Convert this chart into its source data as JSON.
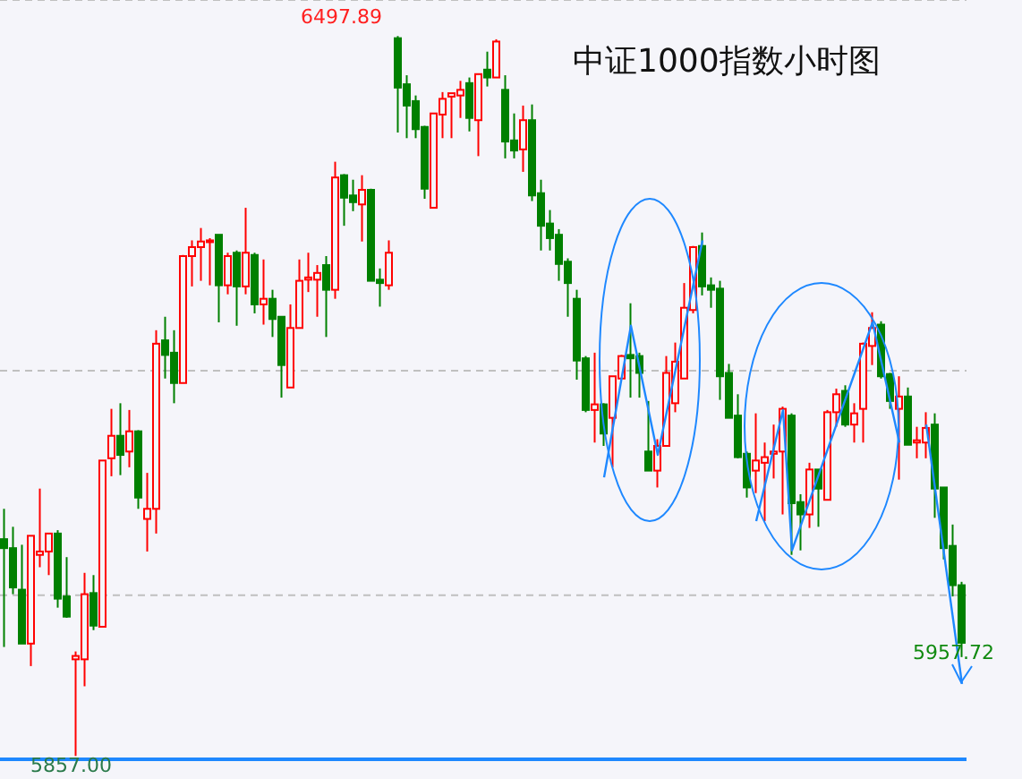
{
  "chart_data": {
    "type": "candlestick",
    "title": "中证1000指数小时图",
    "categories": [
      null,
      null,
      null,
      null,
      null,
      null,
      null,
      null,
      null,
      null,
      null,
      null,
      null,
      null,
      null,
      null,
      null,
      null,
      null,
      null,
      null,
      null,
      null,
      null,
      null,
      null,
      null,
      null,
      null,
      null,
      null,
      null,
      null,
      null,
      null,
      null,
      null,
      null,
      null,
      null,
      null,
      null,
      null,
      null,
      null,
      null,
      null,
      null,
      null,
      null,
      null,
      null,
      null,
      null,
      null,
      null,
      null,
      null,
      null,
      null,
      null,
      null,
      null,
      null,
      null,
      null,
      null,
      null,
      null,
      null,
      null,
      null,
      null,
      null,
      null,
      null,
      null,
      null,
      null,
      null,
      null,
      null,
      null,
      null,
      null,
      null,
      null,
      null,
      null,
      null,
      null,
      null,
      null,
      null,
      null,
      null,
      null,
      null,
      null,
      null,
      null,
      null,
      null,
      null,
      null,
      null,
      null,
      null
    ],
    "ohlc": [
      [
        6050,
        6077,
        5954,
        6042
      ],
      [
        6042,
        6061,
        6001,
        6007
      ],
      [
        6005,
        6045,
        5957,
        5957
      ],
      [
        5957,
        6053,
        5937,
        6053
      ],
      [
        6036,
        6095,
        6025,
        6039
      ],
      [
        6039,
        6055,
        6018,
        6055
      ],
      [
        6055,
        6058,
        5989,
        5997
      ],
      [
        5999,
        6034,
        5980,
        5981
      ],
      [
        5943,
        5950,
        5857.0,
        5946
      ],
      [
        5943,
        6020,
        5919,
        6001
      ],
      [
        6002,
        6018,
        5969,
        5973
      ],
      [
        5972,
        6120,
        5972,
        6120
      ],
      [
        6122,
        6166,
        6106,
        6142
      ],
      [
        6142,
        6171,
        6107,
        6125
      ],
      [
        6128,
        6165,
        6114,
        6146
      ],
      [
        6146,
        6147,
        6077,
        6087
      ],
      [
        6068,
        6109,
        6039,
        6077
      ],
      [
        6077,
        6236,
        6055,
        6224
      ],
      [
        6227,
        6248,
        6193,
        6214
      ],
      [
        6216,
        6236,
        6171,
        6189
      ],
      [
        6189,
        6303,
        6189,
        6302
      ],
      [
        6302,
        6316,
        6275,
        6310
      ],
      [
        6310,
        6327,
        6280,
        6315
      ],
      [
        6315,
        6318,
        6276,
        6316
      ],
      [
        6321,
        6321,
        6243,
        6276
      ],
      [
        6276,
        6305,
        6268,
        6302
      ],
      [
        6305,
        6307,
        6240,
        6275
      ],
      [
        6275,
        6345,
        6268,
        6305
      ],
      [
        6303,
        6305,
        6251,
        6259
      ],
      [
        6259,
        6299,
        6241,
        6264
      ],
      [
        6264,
        6272,
        6230,
        6246
      ],
      [
        6248,
        6248,
        6176,
        6205
      ],
      [
        6185,
        6259,
        6185,
        6238
      ],
      [
        6238,
        6299,
        6238,
        6280
      ],
      [
        6281,
        6305,
        6270,
        6283
      ],
      [
        6281,
        6294,
        6248,
        6287
      ],
      [
        6294,
        6302,
        6230,
        6272
      ],
      [
        6272,
        6386,
        6264,
        6372
      ],
      [
        6374,
        6375,
        6329,
        6354
      ],
      [
        6356,
        6370,
        6342,
        6350
      ],
      [
        6348,
        6374,
        6315,
        6361
      ],
      [
        6361,
        6362,
        6280,
        6280
      ],
      [
        6281,
        6291,
        6257,
        6278
      ],
      [
        6276,
        6316,
        6272,
        6305
      ],
      [
        6496,
        6497.89,
        6412,
        6452
      ],
      [
        6455,
        6463,
        6407,
        6436
      ],
      [
        6440,
        6445,
        6407,
        6415
      ],
      [
        6417,
        6418,
        6353,
        6362
      ],
      [
        6345,
        6429,
        6345,
        6429
      ],
      [
        6428,
        6448,
        6407,
        6442
      ],
      [
        6444,
        6447,
        6407,
        6447
      ],
      [
        6445,
        6458,
        6425,
        6450
      ],
      [
        6456,
        6461,
        6413,
        6425
      ],
      [
        6423,
        6464,
        6391,
        6464
      ],
      [
        6468,
        6484,
        6453,
        6461
      ],
      [
        6461,
        6495,
        6461,
        6493
      ],
      [
        6450,
        6463,
        6389,
        6404
      ],
      [
        6405,
        6429,
        6389,
        6396
      ],
      [
        6397,
        6436,
        6377,
        6423
      ],
      [
        6423,
        6437,
        6351,
        6356
      ],
      [
        6358,
        6370,
        6307,
        6329
      ],
      [
        6331,
        6343,
        6307,
        6318
      ],
      [
        6321,
        6326,
        6280,
        6295
      ],
      [
        6297,
        6300,
        6248,
        6278
      ],
      [
        6264,
        6272,
        6192,
        6209
      ],
      [
        6211,
        6213,
        6163,
        6165
      ],
      [
        6165,
        6216,
        6136,
        6170
      ],
      [
        6170,
        6171,
        6133,
        6144
      ],
      [
        6158,
        6195,
        6114,
        6195
      ],
      [
        6193,
        6214,
        6193,
        6213
      ],
      [
        6214,
        6260,
        6176,
        6211
      ],
      [
        6213,
        6216,
        6176,
        6198
      ],
      [
        6128,
        6173,
        6111,
        6111
      ],
      [
        6111,
        6139,
        6096,
        6133
      ],
      [
        6133,
        6213,
        6133,
        6198
      ],
      [
        6171,
        6225,
        6163,
        6208
      ],
      [
        6193,
        6278,
        6193,
        6256
      ],
      [
        6254,
        6311,
        6251,
        6310
      ],
      [
        6311,
        6323,
        6267,
        6275
      ],
      [
        6276,
        6283,
        6256,
        6272
      ],
      [
        6273,
        6280,
        6174,
        6195
      ],
      [
        6198,
        6206,
        6158,
        6158
      ],
      [
        6160,
        6179,
        6122,
        6123
      ],
      [
        6126,
        6128,
        6087,
        6096
      ],
      [
        6111,
        6162,
        6091,
        6120
      ],
      [
        6118,
        6136,
        6066,
        6123
      ],
      [
        6126,
        6152,
        6104,
        6128
      ],
      [
        6128,
        6168,
        6072,
        6166
      ],
      [
        6160,
        6162,
        6036,
        6082
      ],
      [
        6083,
        6090,
        6040,
        6072
      ],
      [
        6072,
        6118,
        6060,
        6112
      ],
      [
        6112,
        6112,
        6061,
        6095
      ],
      [
        6085,
        6165,
        6085,
        6163
      ],
      [
        6163,
        6184,
        6150,
        6179
      ],
      [
        6182,
        6187,
        6150,
        6152
      ],
      [
        6152,
        6171,
        6136,
        6162
      ],
      [
        6166,
        6225,
        6136,
        6224
      ],
      [
        6222,
        6252,
        6205,
        6238
      ],
      [
        6241,
        6244,
        6193,
        6195
      ],
      [
        6197,
        6198,
        6166,
        6173
      ],
      [
        6166,
        6195,
        6103,
        6177
      ],
      [
        6177,
        6185,
        6134,
        6134
      ],
      [
        6136,
        6150,
        6122,
        6138
      ],
      [
        6136,
        6163,
        6122,
        6149
      ],
      [
        6152,
        6162,
        6069,
        6095
      ],
      [
        6096,
        6096,
        6032,
        6042
      ],
      [
        6044,
        6063,
        5999,
        6009
      ],
      [
        6009,
        6012,
        5945,
        5957.72
      ]
    ],
    "ylim": [
      5854,
      6530
    ],
    "yticks": [
      {
        "value": 6000,
        "label": null
      },
      {
        "value": 6200,
        "label": null
      }
    ],
    "grid": "y",
    "series": [
      {
        "type": "line",
        "color": "#1e88ff",
        "values": [
          null,
          null,
          null,
          null,
          null,
          null,
          null,
          null,
          null,
          null,
          null,
          null,
          null,
          null,
          null,
          null,
          null,
          null,
          null,
          null,
          null,
          null,
          null,
          null,
          null,
          null,
          null,
          null,
          null,
          null,
          null,
          null,
          null,
          null,
          null,
          null,
          null,
          null,
          null,
          null,
          null,
          null,
          null,
          null,
          null,
          null,
          null,
          null,
          null,
          null,
          null,
          null,
          null,
          null,
          null,
          null,
          null,
          null,
          null,
          null,
          null,
          null,
          null,
          null,
          null,
          null,
          null,
          6105,
          null,
          null,
          6240,
          null,
          null,
          6125,
          null,
          null,
          null,
          null,
          6316,
          null,
          null,
          null,
          null,
          null,
          null,
          null,
          null,
          null,
          null,
          null,
          null,
          null,
          null,
          null,
          null,
          null,
          null,
          null,
          null,
          null,
          null,
          null,
          null,
          null,
          null,
          null,
          null,
          null
        ]
      },
      {
        "type": "line",
        "color": "#1e88ff",
        "values": [
          null,
          null,
          null,
          null,
          null,
          null,
          null,
          null,
          null,
          null,
          null,
          null,
          null,
          null,
          null,
          null,
          null,
          null,
          null,
          null,
          null,
          null,
          null,
          null,
          null,
          null,
          null,
          null,
          null,
          null,
          null,
          null,
          null,
          null,
          null,
          null,
          null,
          null,
          null,
          null,
          null,
          null,
          null,
          null,
          null,
          null,
          null,
          null,
          null,
          null,
          null,
          null,
          null,
          null,
          null,
          null,
          null,
          null,
          null,
          null,
          null,
          null,
          null,
          null,
          null,
          null,
          null,
          null,
          null,
          null,
          null,
          null,
          null,
          null,
          null,
          null,
          null,
          null,
          null,
          null,
          null,
          null,
          null,
          null,
          6066,
          null,
          null,
          6165,
          6040,
          null,
          null,
          null,
          null,
          null,
          null,
          null,
          null,
          6243,
          null,
          null,
          6136,
          null,
          null,
          null,
          null,
          null,
          null,
          null
        ]
      },
      {
        "type": "line",
        "color": "#1e88ff",
        "values": [
          null,
          null,
          null,
          null,
          null,
          null,
          null,
          null,
          null,
          null,
          null,
          null,
          null,
          null,
          null,
          null,
          null,
          null,
          null,
          null,
          null,
          null,
          null,
          null,
          null,
          null,
          null,
          null,
          null,
          null,
          null,
          null,
          null,
          null,
          null,
          null,
          null,
          null,
          null,
          null,
          null,
          null,
          null,
          null,
          null,
          null,
          null,
          null,
          null,
          null,
          null,
          null,
          null,
          null,
          null,
          null,
          null,
          null,
          null,
          null,
          null,
          null,
          null,
          null,
          null,
          null,
          null,
          null,
          null,
          null,
          null,
          null,
          null,
          null,
          null,
          null,
          null,
          null,
          null,
          null,
          null,
          null,
          null,
          null,
          null,
          null,
          null,
          null,
          null,
          null,
          null,
          null,
          null,
          null,
          null,
          null,
          null,
          null,
          null,
          null,
          null,
          null,
          null,
          6152,
          null,
          null,
          null,
          5921
        ]
      }
    ],
    "marker": "none",
    "annotations": [
      "6497.89",
      "5857.00",
      "5957.72"
    ]
  }
}
